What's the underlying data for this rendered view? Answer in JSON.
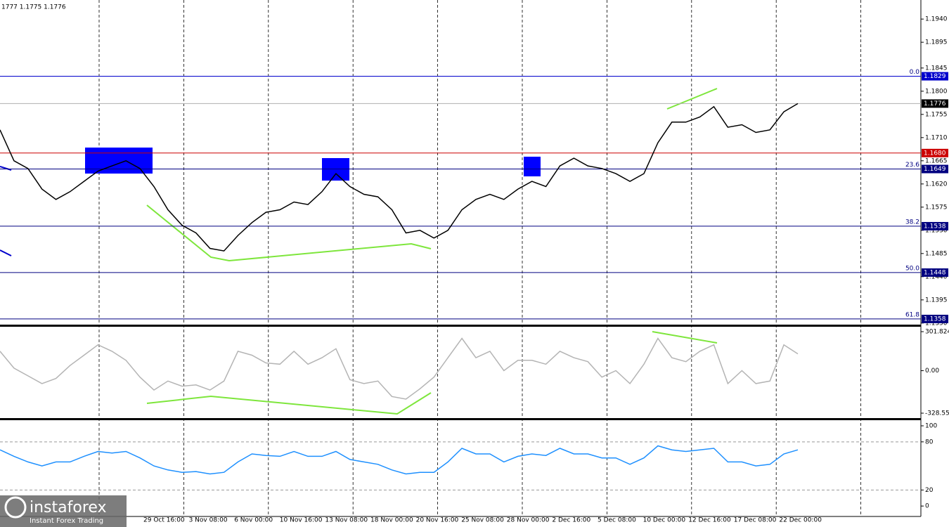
{
  "header": "1777 1.1775 1.1776",
  "logo": {
    "name": "instaforex",
    "tagline": "Instant Forex Trading"
  },
  "x_axis_labels": [
    "29 Oct 16:00",
    "3 Nov 08:00",
    "6 Nov 00:00",
    "10 Nov 16:00",
    "13 Nov 08:00",
    "18 Nov 00:00",
    "20 Nov 16:00",
    "25 Nov 08:00",
    "28 Nov 00:00",
    "2 Dec 16:00",
    "5 Dec 08:00",
    "10 Dec 00:00",
    "12 Dec 16:00",
    "17 Dec 08:00",
    "22 Dec 00:00"
  ],
  "chart_data": [
    {
      "type": "line",
      "color": "#000000",
      "ylim": [
        1.1347,
        1.1977
      ],
      "yticks": [
        {
          "value": 1.194,
          "label": "1.1940"
        },
        1.1895,
        1.1845,
        {
          "value": 1.18,
          "label": "1.1800"
        },
        1.1755,
        {
          "value": 1.171,
          "label": "1.1710"
        },
        1.1665,
        {
          "value": 1.162,
          "label": "1.1620"
        },
        1.1575,
        {
          "value": 1.153,
          "label": "1.1530"
        },
        1.1485,
        {
          "value": 1.144,
          "label": "1.1440"
        },
        1.1395,
        {
          "value": 1.135,
          "label": "1.1350"
        }
      ],
      "levels": [
        {
          "value": 1.1829,
          "color": "#0000cc",
          "fib": "0.0"
        },
        {
          "value": {
            "value": 1.168,
            "label": "1.1680"
          },
          "color": "#cc0000"
        },
        {
          "value": 1.1649,
          "color": "#000080",
          "fib": "23.6"
        },
        {
          "value": 1.1538,
          "color": "#000080",
          "fib": "38.2"
        },
        {
          "value": 1.1448,
          "color": "#000080",
          "fib": "50.0"
        },
        {
          "value": 1.1358,
          "color": "#000080",
          "fib": "61.8"
        },
        {
          "value": 1.1776,
          "color": "#000000",
          "line": "#b0b0b0"
        }
      ],
      "values": [
        1.1725,
        1.1665,
        1.165,
        1.161,
        1.159,
        1.1605,
        1.1625,
        1.1645,
        1.1655,
        1.1665,
        1.165,
        1.1615,
        1.157,
        1.154,
        1.1525,
        1.1495,
        1.149,
        1.152,
        1.1545,
        1.1565,
        1.157,
        1.1585,
        1.158,
        1.1605,
        1.164,
        1.1615,
        1.16,
        1.1595,
        1.157,
        1.1525,
        1.153,
        1.1515,
        1.153,
        1.157,
        1.159,
        1.16,
        1.159,
        1.161,
        1.1625,
        1.1615,
        1.1655,
        1.167,
        1.1655,
        1.165,
        1.164,
        1.1625,
        1.164,
        1.17,
        1.174,
        1.174,
        1.175,
        1.177,
        1.173,
        1.1735,
        1.172,
        1.1725,
        1.176,
        1.1776
      ]
    },
    {
      "type": "line",
      "color": "#b4b4b4",
      "ylim": [
        -366.6,
        334.4
      ],
      "yticks": [
        301.8242,
        {
          "value": 0,
          "label": "0.00"
        },
        -328.551
      ],
      "values": [
        150,
        20,
        -40,
        -100,
        -60,
        40,
        120,
        200,
        150,
        80,
        -50,
        -150,
        -80,
        -120,
        -110,
        -150,
        -80,
        150,
        120,
        60,
        50,
        150,
        50,
        100,
        170,
        -70,
        -100,
        -80,
        -200,
        -220,
        -140,
        -50,
        100,
        250,
        100,
        150,
        0,
        80,
        80,
        50,
        150,
        100,
        70,
        -50,
        0,
        -100,
        50,
        250,
        100,
        70,
        150,
        200,
        -100,
        0,
        -100,
        -80,
        200,
        130
      ]
    },
    {
      "type": "line",
      "color": "#1e90ff",
      "ylim": [
        -13,
        107
      ],
      "yticks": [
        100,
        80,
        20,
        0
      ],
      "levels": [
        80,
        20
      ],
      "values": [
        70,
        62,
        55,
        50,
        55,
        55,
        62,
        68,
        66,
        68,
        60,
        50,
        45,
        42,
        43,
        40,
        42,
        55,
        65,
        63,
        62,
        68,
        62,
        62,
        68,
        58,
        55,
        52,
        45,
        40,
        42,
        42,
        55,
        72,
        65,
        65,
        55,
        62,
        65,
        63,
        72,
        65,
        65,
        60,
        60,
        52,
        60,
        75,
        70,
        68,
        70,
        72,
        55,
        55,
        50,
        52,
        65,
        70
      ]
    }
  ]
}
